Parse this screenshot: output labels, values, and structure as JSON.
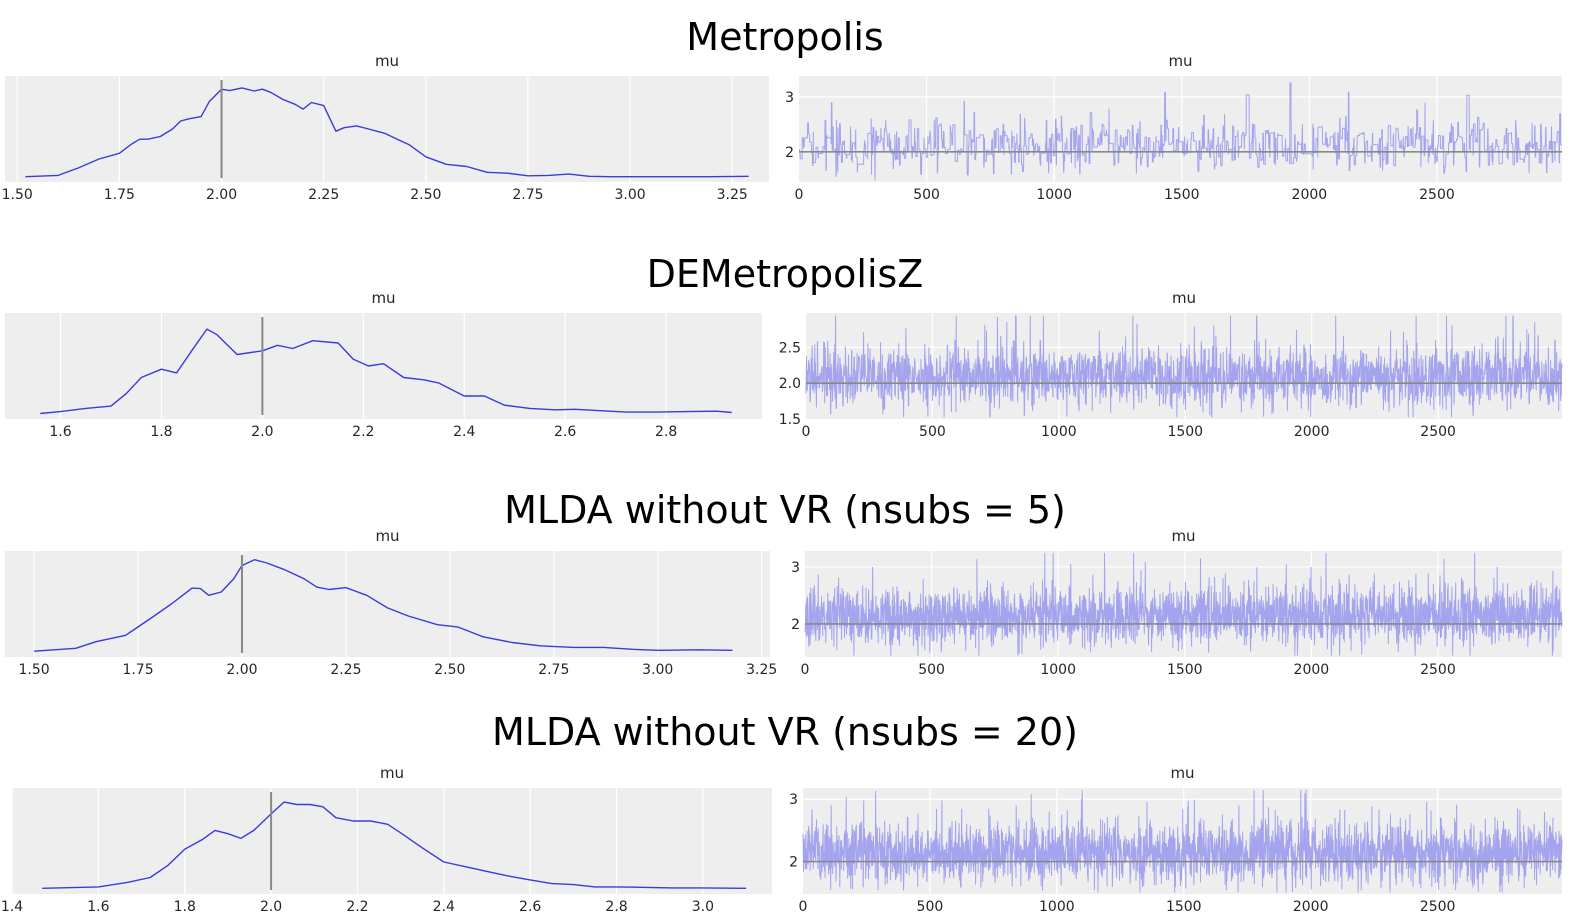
{
  "figure": {
    "background": "#ffffff",
    "axes_facecolor": "#eeeeee",
    "grid_color": "#ffffff",
    "kde_color": "#3b3bd9",
    "trace_color": "#a3a3ee",
    "ref_line_color": "#888888"
  },
  "chart_data": [
    {
      "section": "Metropolis",
      "title": "Metropolis",
      "kde": {
        "type": "line",
        "title": "mu",
        "xlim": [
          1.47,
          3.34
        ],
        "ylim": [
          -0.1,
          2.3
        ],
        "xticks": [
          1.5,
          1.75,
          2.0,
          2.25,
          2.5,
          2.75,
          3.0,
          3.25
        ],
        "xtick_labels": [
          "1.50",
          "1.75",
          "2.00",
          "2.25",
          "2.50",
          "2.75",
          "3.00",
          "3.25"
        ],
        "ref_value": 2.0,
        "x": [
          1.52,
          1.6,
          1.65,
          1.7,
          1.75,
          1.78,
          1.8,
          1.82,
          1.85,
          1.88,
          1.9,
          1.92,
          1.95,
          1.97,
          2.0,
          2.02,
          2.05,
          2.08,
          2.1,
          2.12,
          2.15,
          2.18,
          2.2,
          2.22,
          2.25,
          2.28,
          2.3,
          2.33,
          2.36,
          2.4,
          2.43,
          2.46,
          2.5,
          2.55,
          2.6,
          2.65,
          2.7,
          2.75,
          2.8,
          2.85,
          2.9,
          2.95,
          3.0,
          3.1,
          3.2,
          3.29
        ],
        "y": [
          0.02,
          0.05,
          0.22,
          0.42,
          0.55,
          0.76,
          0.87,
          0.87,
          0.93,
          1.1,
          1.28,
          1.33,
          1.38,
          1.72,
          2.0,
          1.97,
          2.03,
          1.96,
          2.0,
          1.93,
          1.77,
          1.66,
          1.55,
          1.7,
          1.63,
          1.05,
          1.13,
          1.17,
          1.1,
          1.0,
          0.87,
          0.74,
          0.47,
          0.3,
          0.25,
          0.12,
          0.1,
          0.04,
          0.05,
          0.08,
          0.03,
          0.02,
          0.02,
          0.02,
          0.02,
          0.03
        ]
      },
      "trace": {
        "type": "line",
        "title": "mu",
        "n_draws": 3000,
        "xlim": [
          0,
          2990
        ],
        "ylim": [
          1.45,
          3.38
        ],
        "xticks": [
          0,
          500,
          1000,
          1500,
          2000,
          2500
        ],
        "xtick_labels": [
          "0",
          "500",
          "1000",
          "1500",
          "2000",
          "2500"
        ],
        "yticks": [
          2,
          3
        ],
        "ytick_labels": [
          "2",
          "3"
        ],
        "ref_value": 2.0,
        "center": 2.1,
        "spread": 0.22,
        "stickiness": 0.72,
        "seed": 11
      }
    },
    {
      "section": "DEMetropolisZ",
      "title": "DEMetropolisZ",
      "kde": {
        "type": "line",
        "title": "mu",
        "xlim": [
          1.49,
          2.99
        ],
        "ylim": [
          -0.1,
          2.2
        ],
        "xticks": [
          1.6,
          1.8,
          2.0,
          2.2,
          2.4,
          2.6,
          2.8
        ],
        "xtick_labels": [
          "1.6",
          "1.8",
          "2.0",
          "2.2",
          "2.4",
          "2.6",
          "2.8"
        ],
        "ref_value": 2.0,
        "x": [
          1.56,
          1.6,
          1.65,
          1.7,
          1.73,
          1.76,
          1.8,
          1.83,
          1.86,
          1.89,
          1.91,
          1.95,
          2.0,
          2.03,
          2.06,
          2.1,
          2.15,
          2.18,
          2.21,
          2.24,
          2.28,
          2.32,
          2.35,
          2.4,
          2.44,
          2.48,
          2.53,
          2.58,
          2.62,
          2.67,
          2.72,
          2.78,
          2.84,
          2.9,
          2.93
        ],
        "y": [
          0.02,
          0.06,
          0.13,
          0.18,
          0.45,
          0.8,
          0.98,
          0.9,
          1.38,
          1.85,
          1.73,
          1.3,
          1.38,
          1.5,
          1.43,
          1.6,
          1.55,
          1.2,
          1.05,
          1.1,
          0.8,
          0.75,
          0.68,
          0.4,
          0.4,
          0.2,
          0.13,
          0.1,
          0.11,
          0.08,
          0.05,
          0.05,
          0.06,
          0.07,
          0.04
        ]
      },
      "trace": {
        "type": "line",
        "title": "mu",
        "n_draws": 3000,
        "xlim": [
          0,
          2990
        ],
        "ylim": [
          1.5,
          2.98
        ],
        "xticks": [
          0,
          500,
          1000,
          1500,
          2000,
          2500
        ],
        "xtick_labels": [
          "0",
          "500",
          "1000",
          "1500",
          "2000",
          "2500"
        ],
        "yticks": [
          1.5,
          2.0,
          2.5
        ],
        "ytick_labels": [
          "1.5",
          "2.0",
          "2.5"
        ],
        "ref_value": 2.0,
        "center": 2.08,
        "spread": 0.2,
        "stickiness": 0.15,
        "seed": 23
      }
    },
    {
      "section": "MLDA without VR (nsubs = 5)",
      "title": "MLDA without VR (nsubs = 5)",
      "kde": {
        "type": "line",
        "title": "mu",
        "xlim": [
          1.43,
          3.27
        ],
        "ylim": [
          -0.1,
          2.1
        ],
        "xticks": [
          1.5,
          1.75,
          2.0,
          2.25,
          2.5,
          2.75,
          3.0,
          3.25
        ],
        "xtick_labels": [
          "1.50",
          "1.75",
          "2.00",
          "2.25",
          "2.50",
          "2.75",
          "3.00",
          "3.25"
        ],
        "ref_value": 2.0,
        "x": [
          1.5,
          1.6,
          1.65,
          1.72,
          1.78,
          1.83,
          1.86,
          1.88,
          1.9,
          1.92,
          1.95,
          1.98,
          2.0,
          2.03,
          2.06,
          2.1,
          2.15,
          2.18,
          2.21,
          2.25,
          2.3,
          2.35,
          2.4,
          2.47,
          2.52,
          2.58,
          2.65,
          2.72,
          2.8,
          2.87,
          2.94,
          3.0,
          3.1,
          3.18
        ],
        "y": [
          0.02,
          0.08,
          0.22,
          0.35,
          0.7,
          1.0,
          1.2,
          1.33,
          1.32,
          1.18,
          1.25,
          1.52,
          1.8,
          1.92,
          1.85,
          1.72,
          1.52,
          1.35,
          1.3,
          1.34,
          1.18,
          0.92,
          0.75,
          0.57,
          0.52,
          0.32,
          0.2,
          0.13,
          0.1,
          0.1,
          0.06,
          0.04,
          0.05,
          0.04
        ]
      },
      "trace": {
        "type": "line",
        "title": "mu",
        "n_draws": 3000,
        "xlim": [
          0,
          2990
        ],
        "ylim": [
          1.42,
          3.28
        ],
        "xticks": [
          0,
          500,
          1000,
          1500,
          2000,
          2500
        ],
        "xtick_labels": [
          "0",
          "500",
          "1000",
          "1500",
          "2000",
          "2500"
        ],
        "yticks": [
          2,
          3
        ],
        "ytick_labels": [
          "2",
          "3"
        ],
        "ref_value": 2.0,
        "center": 2.12,
        "spread": 0.24,
        "stickiness": 0.0,
        "seed": 37
      }
    },
    {
      "section": "MLDA without VR (nsubs = 20)",
      "title": "MLDA without VR (nsubs = 20)",
      "kde": {
        "type": "line",
        "title": "mu",
        "xlim": [
          1.4,
          3.16
        ],
        "ylim": [
          -0.1,
          2.15
        ],
        "xticks": [
          1.4,
          1.6,
          1.8,
          2.0,
          2.2,
          2.4,
          2.6,
          2.8,
          3.0
        ],
        "xtick_labels": [
          "1.4",
          "1.6",
          "1.8",
          "2.0",
          "2.2",
          "2.4",
          "2.6",
          "2.8",
          "3.0"
        ],
        "ref_value": 2.0,
        "x": [
          1.47,
          1.6,
          1.67,
          1.72,
          1.76,
          1.8,
          1.84,
          1.87,
          1.9,
          1.93,
          1.96,
          2.0,
          2.03,
          2.06,
          2.09,
          2.12,
          2.15,
          2.19,
          2.23,
          2.27,
          2.3,
          2.35,
          2.4,
          2.45,
          2.5,
          2.55,
          2.6,
          2.65,
          2.7,
          2.75,
          2.8,
          2.87,
          2.93,
          3.0,
          3.1
        ],
        "y": [
          0.02,
          0.05,
          0.15,
          0.25,
          0.5,
          0.85,
          1.05,
          1.25,
          1.18,
          1.08,
          1.25,
          1.6,
          1.85,
          1.8,
          1.8,
          1.75,
          1.52,
          1.45,
          1.45,
          1.38,
          1.2,
          0.88,
          0.58,
          0.48,
          0.38,
          0.28,
          0.2,
          0.12,
          0.1,
          0.05,
          0.05,
          0.04,
          0.03,
          0.03,
          0.02
        ]
      },
      "trace": {
        "type": "line",
        "title": "mu",
        "n_draws": 3000,
        "xlim": [
          0,
          2990
        ],
        "ylim": [
          1.48,
          3.18
        ],
        "xticks": [
          0,
          500,
          1000,
          1500,
          2000,
          2500
        ],
        "xtick_labels": [
          "0",
          "500",
          "1000",
          "1500",
          "2000",
          "2500"
        ],
        "yticks": [
          2,
          3
        ],
        "ytick_labels": [
          "2",
          "3"
        ],
        "ref_value": 2.0,
        "center": 2.13,
        "spread": 0.23,
        "stickiness": 0.0,
        "seed": 51
      }
    }
  ]
}
